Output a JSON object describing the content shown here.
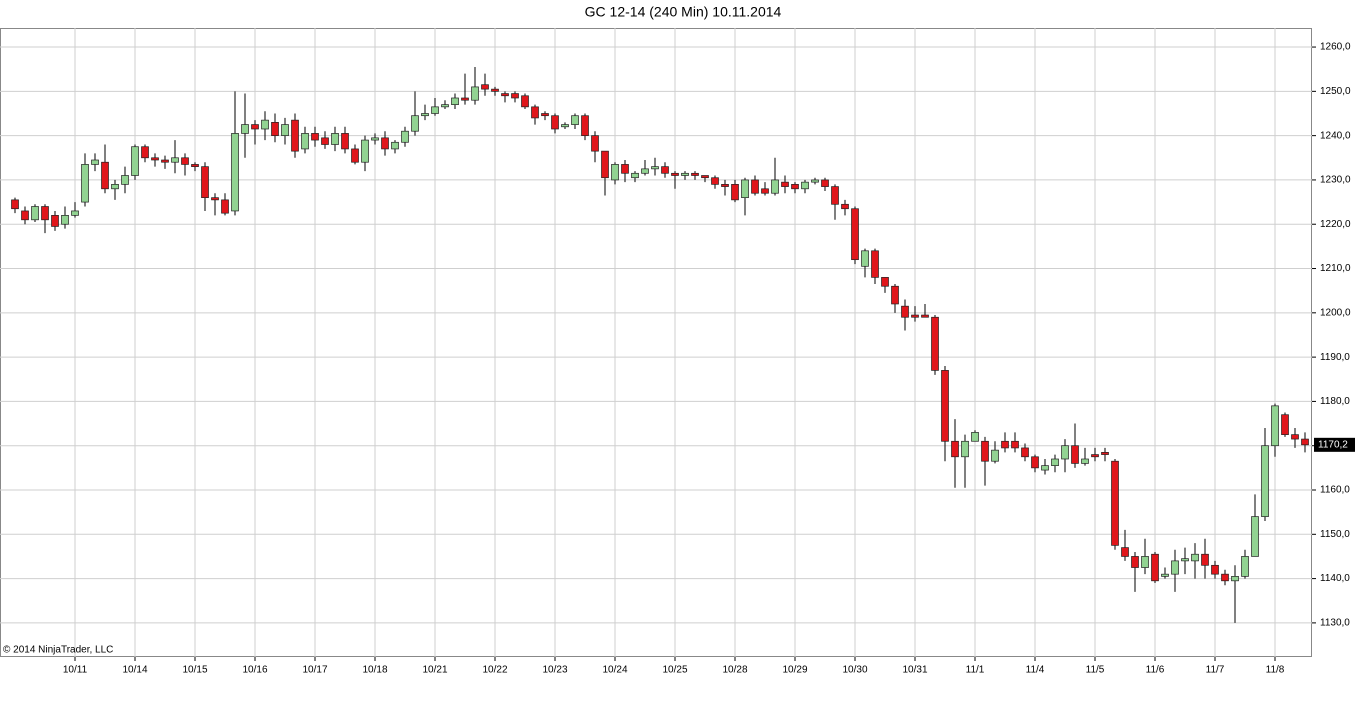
{
  "chart_data": {
    "type": "candlestick",
    "title": "GC 12-14 (240 Min)  10.11.2014",
    "copyright": "© 2014 NinjaTrader, LLC",
    "categories": [
      null,
      null,
      null,
      null,
      null,
      null,
      "10/11",
      null,
      null,
      null,
      null,
      null,
      "10/14",
      null,
      null,
      null,
      null,
      null,
      "10/15",
      null,
      null,
      null,
      null,
      null,
      "10/16",
      null,
      null,
      null,
      null,
      null,
      "10/17",
      null,
      null,
      null,
      null,
      null,
      "10/18",
      null,
      null,
      null,
      null,
      null,
      "10/21",
      null,
      null,
      null,
      null,
      null,
      "10/22",
      null,
      null,
      null,
      null,
      null,
      "10/23",
      null,
      null,
      null,
      null,
      null,
      "10/24",
      null,
      null,
      null,
      null,
      null,
      "10/25",
      null,
      null,
      null,
      null,
      null,
      "10/28",
      null,
      null,
      null,
      null,
      null,
      "10/29",
      null,
      null,
      null,
      null,
      null,
      "10/30",
      null,
      null,
      null,
      null,
      null,
      "10/31",
      null,
      null,
      null,
      null,
      null,
      "11/1",
      null,
      null,
      null,
      null,
      null,
      "11/4",
      null,
      null,
      null,
      null,
      null,
      "11/5",
      null,
      null,
      null,
      null,
      null,
      "11/6",
      null,
      null,
      null,
      null,
      null,
      "11/7",
      null,
      null,
      null,
      null,
      null,
      "11/8",
      null,
      null,
      null
    ],
    "open": [
      1225.5,
      1223,
      1221,
      1224,
      1222,
      1220,
      1222,
      1225,
      1233.5,
      1234,
      1228,
      1229,
      1231,
      1237.5,
      1235,
      1234.5,
      1234,
      1235,
      1233.5,
      1233,
      1226,
      1225.5,
      1223,
      1240.5,
      1242.5,
      1241.5,
      1243,
      1240,
      1243.5,
      1237,
      1240.5,
      1239.5,
      1238,
      1240.5,
      1237,
      1234,
      1239,
      1239.5,
      1237,
      1238.5,
      1241,
      1244.5,
      1245,
      1246.5,
      1247,
      1248.5,
      1248,
      1251.5,
      1250.5,
      1249.5,
      1249.5,
      1249,
      1246.5,
      1245,
      1244.5,
      1242,
      1242.5,
      1244.5,
      1240,
      1236.5,
      1230,
      1233.5,
      1230.5,
      1231.5,
      1232.5,
      1233,
      1231.5,
      1231,
      1231.5,
      1231,
      1230.5,
      1229,
      1229,
      1226,
      1230,
      1228,
      1227,
      1229.5,
      1229,
      1228,
      1229.5,
      1230,
      1228.5,
      1224.5,
      1223.5,
      1210.5,
      1214,
      1208,
      1206,
      1201.5,
      1199.5,
      1199.5,
      1199,
      1187,
      1171,
      1167.5,
      1171,
      1171,
      1166.5,
      1171,
      1171,
      1169.5,
      1167.5,
      1164.5,
      1165.5,
      1167,
      1170,
      1166,
      1168,
      1168.5,
      1166.5,
      1147,
      1145,
      1142.5,
      1145.5,
      1140.5,
      1141,
      1144,
      1144,
      1145.5,
      1143,
      1141,
      1139.5,
      1140.5,
      1145,
      1154,
      1170,
      1177,
      1172.5,
      1171.5
    ],
    "high": [
      1226,
      1224,
      1224.5,
      1224.5,
      1223,
      1224,
      1225,
      1236,
      1236,
      1238,
      1230,
      1233,
      1238,
      1238,
      1236,
      1235.5,
      1239,
      1236,
      1234,
      1234,
      1227,
      1227,
      1250,
      1249.5,
      1243.5,
      1245.5,
      1245,
      1244,
      1245,
      1242,
      1242,
      1241,
      1242,
      1242,
      1238,
      1240,
      1240.5,
      1241,
      1239,
      1242,
      1250,
      1247,
      1248.5,
      1248,
      1249.5,
      1254,
      1255.5,
      1254,
      1251,
      1250,
      1250,
      1249.5,
      1247,
      1245.5,
      1245,
      1243,
      1245,
      1245,
      1241,
      1236.5,
      1234,
      1234.5,
      1232,
      1234.5,
      1235,
      1234,
      1232,
      1232,
      1232,
      1231,
      1231,
      1230,
      1230,
      1230.5,
      1231,
      1229.5,
      1235,
      1231,
      1229.5,
      1230,
      1230.5,
      1230.5,
      1229,
      1225.5,
      1224,
      1214.5,
      1214.5,
      1208,
      1206.5,
      1203,
      1201.5,
      1202,
      1199.5,
      1188,
      1176,
      1172.5,
      1173.5,
      1172,
      1171,
      1173,
      1173,
      1170.5,
      1168,
      1167,
      1168,
      1171.5,
      1175,
      1169.5,
      1169.5,
      1169.5,
      1167,
      1151,
      1146,
      1149,
      1146,
      1142.5,
      1146.5,
      1147,
      1148,
      1149,
      1144,
      1142,
      1143,
      1146.5,
      1159,
      1174,
      1179.5,
      1177.5,
      1174,
      1173
    ],
    "low": [
      1222.5,
      1220,
      1220.5,
      1218,
      1218.5,
      1219,
      1221.5,
      1224,
      1232,
      1227,
      1225.5,
      1227,
      1230,
      1234,
      1233,
      1232.5,
      1231.5,
      1231,
      1232,
      1223,
      1222,
      1222,
      1222,
      1235,
      1238,
      1239,
      1238.5,
      1238,
      1235,
      1236,
      1237.5,
      1237,
      1236.5,
      1236,
      1233.5,
      1232,
      1238,
      1235.5,
      1236,
      1237.5,
      1240,
      1243.5,
      1244.5,
      1246,
      1246,
      1247,
      1247,
      1249,
      1249,
      1247.5,
      1247.5,
      1246,
      1242.5,
      1243.5,
      1240.5,
      1241.5,
      1241.5,
      1239,
      1234,
      1226.5,
      1229,
      1229.5,
      1229.5,
      1231,
      1231,
      1230.5,
      1228,
      1230,
      1230,
      1229.5,
      1228,
      1226.5,
      1225,
      1222,
      1226.5,
      1226.5,
      1226.5,
      1227,
      1227,
      1227,
      1229,
      1227.5,
      1221,
      1222,
      1211,
      1208,
      1206.5,
      1204.5,
      1200,
      1196,
      1198,
      1199,
      1186,
      1166.5,
      1160.5,
      1160.5,
      1171,
      1161,
      1166,
      1168.5,
      1168.5,
      1166.5,
      1164,
      1163.5,
      1164,
      1164,
      1165,
      1165.5,
      1166.5,
      1166.5,
      1146.5,
      1144,
      1137,
      1141,
      1139,
      1140,
      1137,
      1141,
      1140,
      1140,
      1140,
      1138.5,
      1130,
      1140,
      1145,
      1153,
      1167.5,
      1172,
      1169.5,
      1168.5
    ],
    "close": [
      1223.5,
      1221,
      1224,
      1221,
      1219.5,
      1222,
      1223,
      1233.5,
      1234.5,
      1228,
      1229,
      1231,
      1237.5,
      1235,
      1234.5,
      1234,
      1235,
      1233.5,
      1233,
      1226,
      1225.5,
      1222.5,
      1240.5,
      1242.5,
      1241.5,
      1243.5,
      1240,
      1242.5,
      1236.5,
      1240.5,
      1239,
      1238,
      1240.5,
      1237,
      1234,
      1239,
      1239.5,
      1237,
      1238.5,
      1241,
      1244.5,
      1245,
      1246.5,
      1247,
      1248.5,
      1248,
      1251,
      1250.5,
      1250,
      1249,
      1248.5,
      1246.5,
      1244,
      1244.5,
      1241.5,
      1242.5,
      1244.5,
      1240,
      1236.5,
      1230.5,
      1233.5,
      1231.5,
      1231.5,
      1232.5,
      1233,
      1231.5,
      1231,
      1231.5,
      1231,
      1230.5,
      1229,
      1228.5,
      1225.5,
      1230,
      1227,
      1227,
      1230,
      1228.5,
      1228,
      1229.5,
      1230,
      1228.5,
      1224.5,
      1223.5,
      1212,
      1214,
      1208,
      1206,
      1202,
      1199,
      1199,
      1199,
      1187,
      1171,
      1167.5,
      1171,
      1173,
      1166.5,
      1169,
      1169.5,
      1169.5,
      1167.5,
      1165,
      1165.5,
      1167,
      1170,
      1166,
      1167,
      1167.5,
      1168,
      1147.5,
      1145,
      1142.5,
      1145,
      1139.5,
      1141,
      1144,
      1144.5,
      1145.5,
      1143,
      1141,
      1139.5,
      1140.5,
      1145,
      1154,
      1170,
      1179,
      1172.5,
      1171.5,
      1170.2
    ],
    "up_color": "#92d392",
    "down_color": "#e0161b",
    "ylim": [
      1122.3,
      1264.3
    ],
    "yticks": [
      {
        "value": 1130,
        "label": "1130,0"
      },
      {
        "value": 1140,
        "label": "1140,0"
      },
      {
        "value": 1150,
        "label": "1150,0"
      },
      {
        "value": 1160,
        "label": "1160,0"
      },
      {
        "value": 1170,
        "label": "1170,0"
      },
      {
        "value": 1180,
        "label": "1180,0"
      },
      {
        "value": 1190,
        "label": "1190,0"
      },
      {
        "value": 1200,
        "label": "1200,0"
      },
      {
        "value": 1210,
        "label": "1210,0"
      },
      {
        "value": 1220,
        "label": "1220,0"
      },
      {
        "value": 1230,
        "label": "1230,0"
      },
      {
        "value": 1240,
        "label": "1240,0"
      },
      {
        "value": 1250,
        "label": "1250,0"
      },
      {
        "value": 1260,
        "label": "1260,0"
      }
    ],
    "last_price": {
      "value": 1170.2,
      "label": "1170,2"
    },
    "grid": true
  }
}
